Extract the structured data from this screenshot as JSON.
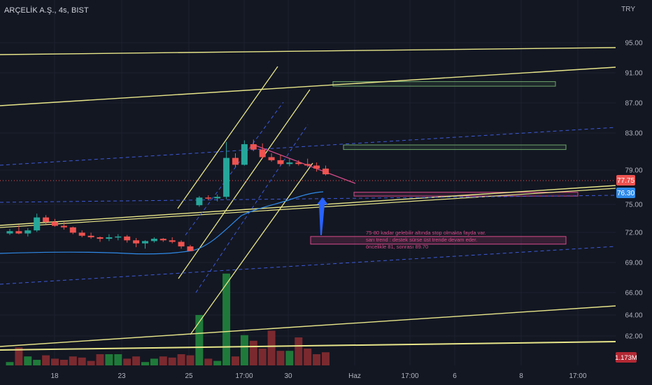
{
  "header": {
    "symbol": "ARÇELİK A.Ş., 4s, BIST",
    "currency": "TRY"
  },
  "price_axis": {
    "ticks": [
      "95.00",
      "91.00",
      "87.00",
      "83.00",
      "79.00",
      "75.00",
      "72.00",
      "69.00",
      "66.00",
      "64.00",
      "62.00"
    ],
    "last_price": "77.75",
    "ma_value": "76.30",
    "volume_label": "1.173M"
  },
  "time_axis": {
    "labels": [
      "18",
      "23",
      "25",
      "17:00",
      "30",
      "Haz",
      "17:00",
      "6",
      "8",
      "17:00"
    ]
  },
  "colors": {
    "background": "#131722",
    "up": "#26a69a",
    "down": "#ef5350",
    "trendline": "#e8e68a",
    "dashed": "#3d5ad8",
    "ma": "#2f8ae8",
    "annotation": "#d64a8a",
    "box_green": "#6fa56a",
    "arrow": "#2962ff"
  },
  "annotation": {
    "lines": [
      "75-80 kadar gelebilir altında stop olmakta fayda var.",
      "sarı trend : destek sürse üst trende devam eder.",
      "öncelikle 81, sonrası 89.70"
    ]
  },
  "chart_data": {
    "type": "candlestick",
    "symbol": "ARÇELİK A.Ş.",
    "interval": "4s",
    "exchange": "BIST",
    "currency": "TRY",
    "ylim": [
      60.7,
      97.5
    ],
    "candles": [
      {
        "o": 70.0,
        "h": 70.6,
        "l": 69.8,
        "c": 70.3
      },
      {
        "o": 70.3,
        "h": 71.1,
        "l": 69.9,
        "c": 70.0
      },
      {
        "o": 70.0,
        "h": 70.7,
        "l": 69.6,
        "c": 70.4
      },
      {
        "o": 70.4,
        "h": 72.6,
        "l": 70.2,
        "c": 72.1
      },
      {
        "o": 72.1,
        "h": 72.4,
        "l": 71.2,
        "c": 71.5
      },
      {
        "o": 71.5,
        "h": 71.9,
        "l": 70.9,
        "c": 71.0
      },
      {
        "o": 71.0,
        "h": 71.5,
        "l": 70.5,
        "c": 70.8
      },
      {
        "o": 70.8,
        "h": 70.9,
        "l": 69.9,
        "c": 70.1
      },
      {
        "o": 70.1,
        "h": 70.4,
        "l": 69.5,
        "c": 69.7
      },
      {
        "o": 69.7,
        "h": 70.1,
        "l": 69.3,
        "c": 69.5
      },
      {
        "o": 69.5,
        "h": 69.6,
        "l": 68.9,
        "c": 69.3
      },
      {
        "o": 69.3,
        "h": 69.9,
        "l": 69.0,
        "c": 69.5
      },
      {
        "o": 69.5,
        "h": 69.9,
        "l": 69.1,
        "c": 69.6
      },
      {
        "o": 69.6,
        "h": 69.8,
        "l": 68.8,
        "c": 69.1
      },
      {
        "o": 69.1,
        "h": 69.4,
        "l": 68.2,
        "c": 68.7
      },
      {
        "o": 68.7,
        "h": 69.1,
        "l": 68.0,
        "c": 69.0
      },
      {
        "o": 69.0,
        "h": 69.5,
        "l": 68.8,
        "c": 69.3
      },
      {
        "o": 69.3,
        "h": 69.4,
        "l": 68.9,
        "c": 69.1
      },
      {
        "o": 69.1,
        "h": 69.5,
        "l": 68.7,
        "c": 68.9
      },
      {
        "o": 68.9,
        "h": 69.1,
        "l": 68.0,
        "c": 68.3
      },
      {
        "o": 68.3,
        "h": 68.5,
        "l": 67.7,
        "c": 67.7
      },
      {
        "o": 73.7,
        "h": 74.9,
        "l": 73.5,
        "c": 74.7
      },
      {
        "o": 74.7,
        "h": 75.0,
        "l": 74.4,
        "c": 74.6
      },
      {
        "o": 74.6,
        "h": 75.1,
        "l": 74.2,
        "c": 74.8
      },
      {
        "o": 74.8,
        "h": 82.0,
        "l": 74.5,
        "c": 79.9
      },
      {
        "o": 79.9,
        "h": 80.5,
        "l": 78.7,
        "c": 79.0
      },
      {
        "o": 79.0,
        "h": 82.2,
        "l": 78.9,
        "c": 81.7
      },
      {
        "o": 81.7,
        "h": 82.3,
        "l": 80.8,
        "c": 81.0
      },
      {
        "o": 81.0,
        "h": 81.8,
        "l": 79.8,
        "c": 80.0
      },
      {
        "o": 80.0,
        "h": 80.5,
        "l": 79.4,
        "c": 79.6
      },
      {
        "o": 79.6,
        "h": 80.3,
        "l": 78.9,
        "c": 79.1
      },
      {
        "o": 79.1,
        "h": 79.8,
        "l": 78.8,
        "c": 79.3
      },
      {
        "o": 79.3,
        "h": 79.6,
        "l": 78.9,
        "c": 79.1
      },
      {
        "o": 79.1,
        "h": 79.8,
        "l": 78.7,
        "c": 78.9
      },
      {
        "o": 78.9,
        "h": 79.3,
        "l": 78.1,
        "c": 78.5
      },
      {
        "o": 78.5,
        "h": 78.9,
        "l": 77.6,
        "c": 77.75
      }
    ],
    "volume": [
      0.3,
      1.6,
      0.8,
      0.5,
      0.9,
      0.6,
      0.5,
      0.8,
      0.7,
      0.4,
      1.0,
      1.0,
      1.0,
      0.6,
      0.8,
      0.3,
      0.6,
      0.8,
      0.7,
      1.0,
      0.9,
      4.5,
      0.6,
      0.4,
      8.2,
      0.8,
      2.7,
      2.2,
      1.5,
      3.1,
      1.3,
      1.3,
      2.5,
      1.5,
      1.0,
      1.173
    ],
    "volume_unit": "M",
    "moving_average": {
      "last": 76.3
    },
    "last_price": 77.75,
    "zones": [
      {
        "name": "resistance-1",
        "from": 89.3,
        "to": 89.9
      },
      {
        "name": "resistance-2",
        "from": 81.0,
        "to": 81.6
      },
      {
        "name": "support",
        "from": 74.9,
        "to": 75.4
      },
      {
        "name": "support-2",
        "from": 68.6,
        "to": 69.6
      }
    ],
    "grid": true
  }
}
